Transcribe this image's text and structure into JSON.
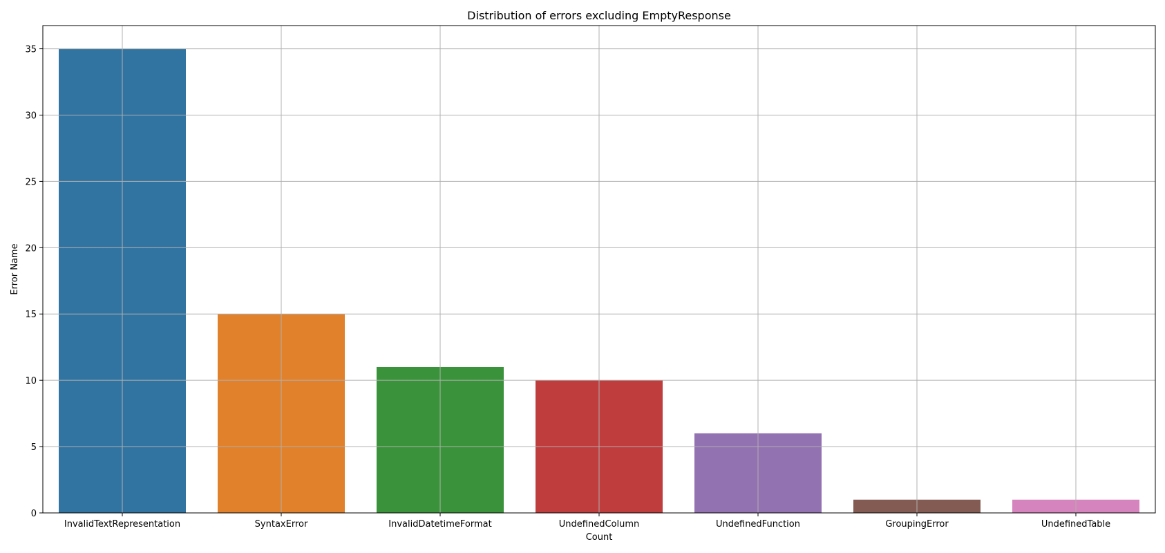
{
  "chart_data": {
    "type": "bar",
    "title": "Distribution of errors excluding EmptyResponse",
    "xlabel": "Count",
    "ylabel": "Error Name",
    "categories": [
      "InvalidTextRepresentation",
      "SyntaxError",
      "InvalidDatetimeFormat",
      "UndefinedColumn",
      "UndefinedFunction",
      "GroupingError",
      "UndefinedTable"
    ],
    "values": [
      35,
      15,
      11,
      10,
      6,
      1,
      1
    ],
    "colors": [
      "#3274a1",
      "#e1812c",
      "#3a923a",
      "#c03d3e",
      "#9372b2",
      "#845b53",
      "#d684bd"
    ],
    "ylim": [
      0,
      36.75
    ],
    "yticks": [
      0,
      5,
      10,
      15,
      20,
      25,
      30,
      35
    ],
    "grid": true,
    "legend": "none"
  }
}
